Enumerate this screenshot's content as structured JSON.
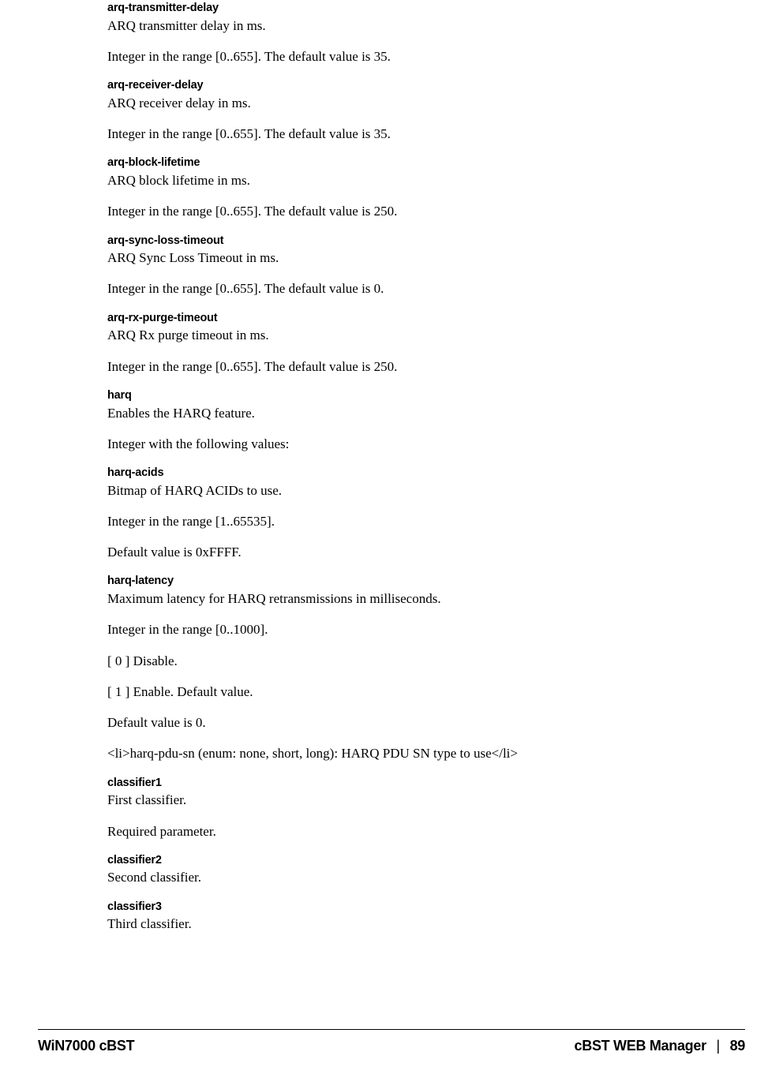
{
  "entries": [
    {
      "term": "arq-transmitter-delay",
      "paras": [
        "ARQ transmitter delay in ms.",
        "Integer in the range [0..655]. The default value is 35."
      ]
    },
    {
      "term": "arq-receiver-delay",
      "paras": [
        "ARQ receiver delay in ms.",
        "Integer in the range [0..655]. The default value is 35."
      ]
    },
    {
      "term": "arq-block-lifetime",
      "paras": [
        "ARQ block lifetime in ms.",
        "Integer in the range [0..655]. The default value is 250."
      ]
    },
    {
      "term": "arq-sync-loss-timeout",
      "paras": [
        "ARQ Sync Loss Timeout in ms.",
        "Integer in the range [0..655]. The default value is 0."
      ]
    },
    {
      "term": "arq-rx-purge-timeout",
      "paras": [
        "ARQ Rx purge timeout in ms.",
        "Integer in the range [0..655]. The default value is 250."
      ]
    },
    {
      "term": "harq",
      "paras": [
        "Enables the HARQ feature.",
        "Integer with the following values:"
      ]
    },
    {
      "term": "harq-acids",
      "paras": [
        "Bitmap of HARQ ACIDs to use.",
        "Integer in the range [1..65535].",
        "Default value is 0xFFFF."
      ]
    },
    {
      "term": "harq-latency",
      "paras": [
        "Maximum latency for HARQ retransmissions in milliseconds.",
        "Integer in the range [0..1000].",
        " [ 0 ] Disable.",
        "[ 1 ] Enable. Default value.",
        "Default value is 0.",
        "<li>harq-pdu-sn (enum: none, short, long): HARQ PDU SN type to use</li>"
      ]
    },
    {
      "term": "classifier1",
      "paras": [
        "First classifier.",
        "Required parameter."
      ]
    },
    {
      "term": "classifier2",
      "paras": [
        "Second classifier."
      ]
    },
    {
      "term": "classifier3",
      "paras": [
        "Third classifier."
      ]
    }
  ],
  "footer": {
    "left": "WiN7000 cBST",
    "right_title": "cBST WEB Manager",
    "page": "89"
  }
}
